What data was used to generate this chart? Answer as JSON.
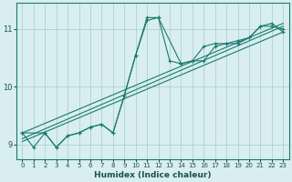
{
  "xlabel": "Humidex (Indice chaleur)",
  "bg_color": "#d8eef0",
  "grid_color": "#aacccc",
  "line_color": "#1a7a6e",
  "xlim": [
    -0.5,
    23.5
  ],
  "ylim": [
    8.75,
    11.45
  ],
  "yticks": [
    9,
    10,
    11
  ],
  "xticks": [
    0,
    1,
    2,
    3,
    4,
    5,
    6,
    7,
    8,
    9,
    10,
    11,
    12,
    13,
    14,
    15,
    16,
    17,
    18,
    19,
    20,
    21,
    22,
    23
  ],
  "series1_x": [
    0,
    1,
    2,
    3,
    4,
    5,
    6,
    7,
    8,
    9,
    10,
    11,
    12,
    13,
    14,
    15,
    16,
    17,
    18,
    19,
    20,
    21,
    22,
    23
  ],
  "series1_y": [
    9.2,
    8.95,
    9.2,
    8.95,
    9.15,
    9.2,
    9.3,
    9.35,
    9.2,
    9.85,
    10.55,
    11.2,
    11.2,
    10.45,
    10.4,
    10.45,
    10.7,
    10.75,
    10.75,
    10.8,
    10.85,
    11.05,
    11.05,
    11.0
  ],
  "series2_x": [
    0,
    2,
    3,
    4,
    5,
    6,
    7,
    8,
    9,
    10,
    11,
    12,
    14,
    15,
    16,
    17,
    18,
    19,
    20,
    21,
    22,
    23
  ],
  "series2_y": [
    9.2,
    9.2,
    8.95,
    9.15,
    9.2,
    9.3,
    9.35,
    9.2,
    9.85,
    10.55,
    11.15,
    11.2,
    10.4,
    10.45,
    10.45,
    10.7,
    10.75,
    10.75,
    10.85,
    11.05,
    11.1,
    10.95
  ],
  "series3_x": [
    0,
    23
  ],
  "series3_y": [
    9.05,
    10.95
  ],
  "series4_x": [
    0,
    23
  ],
  "series4_y": [
    9.1,
    11.05
  ],
  "series5_x": [
    0,
    23
  ],
  "series5_y": [
    9.2,
    11.1
  ]
}
